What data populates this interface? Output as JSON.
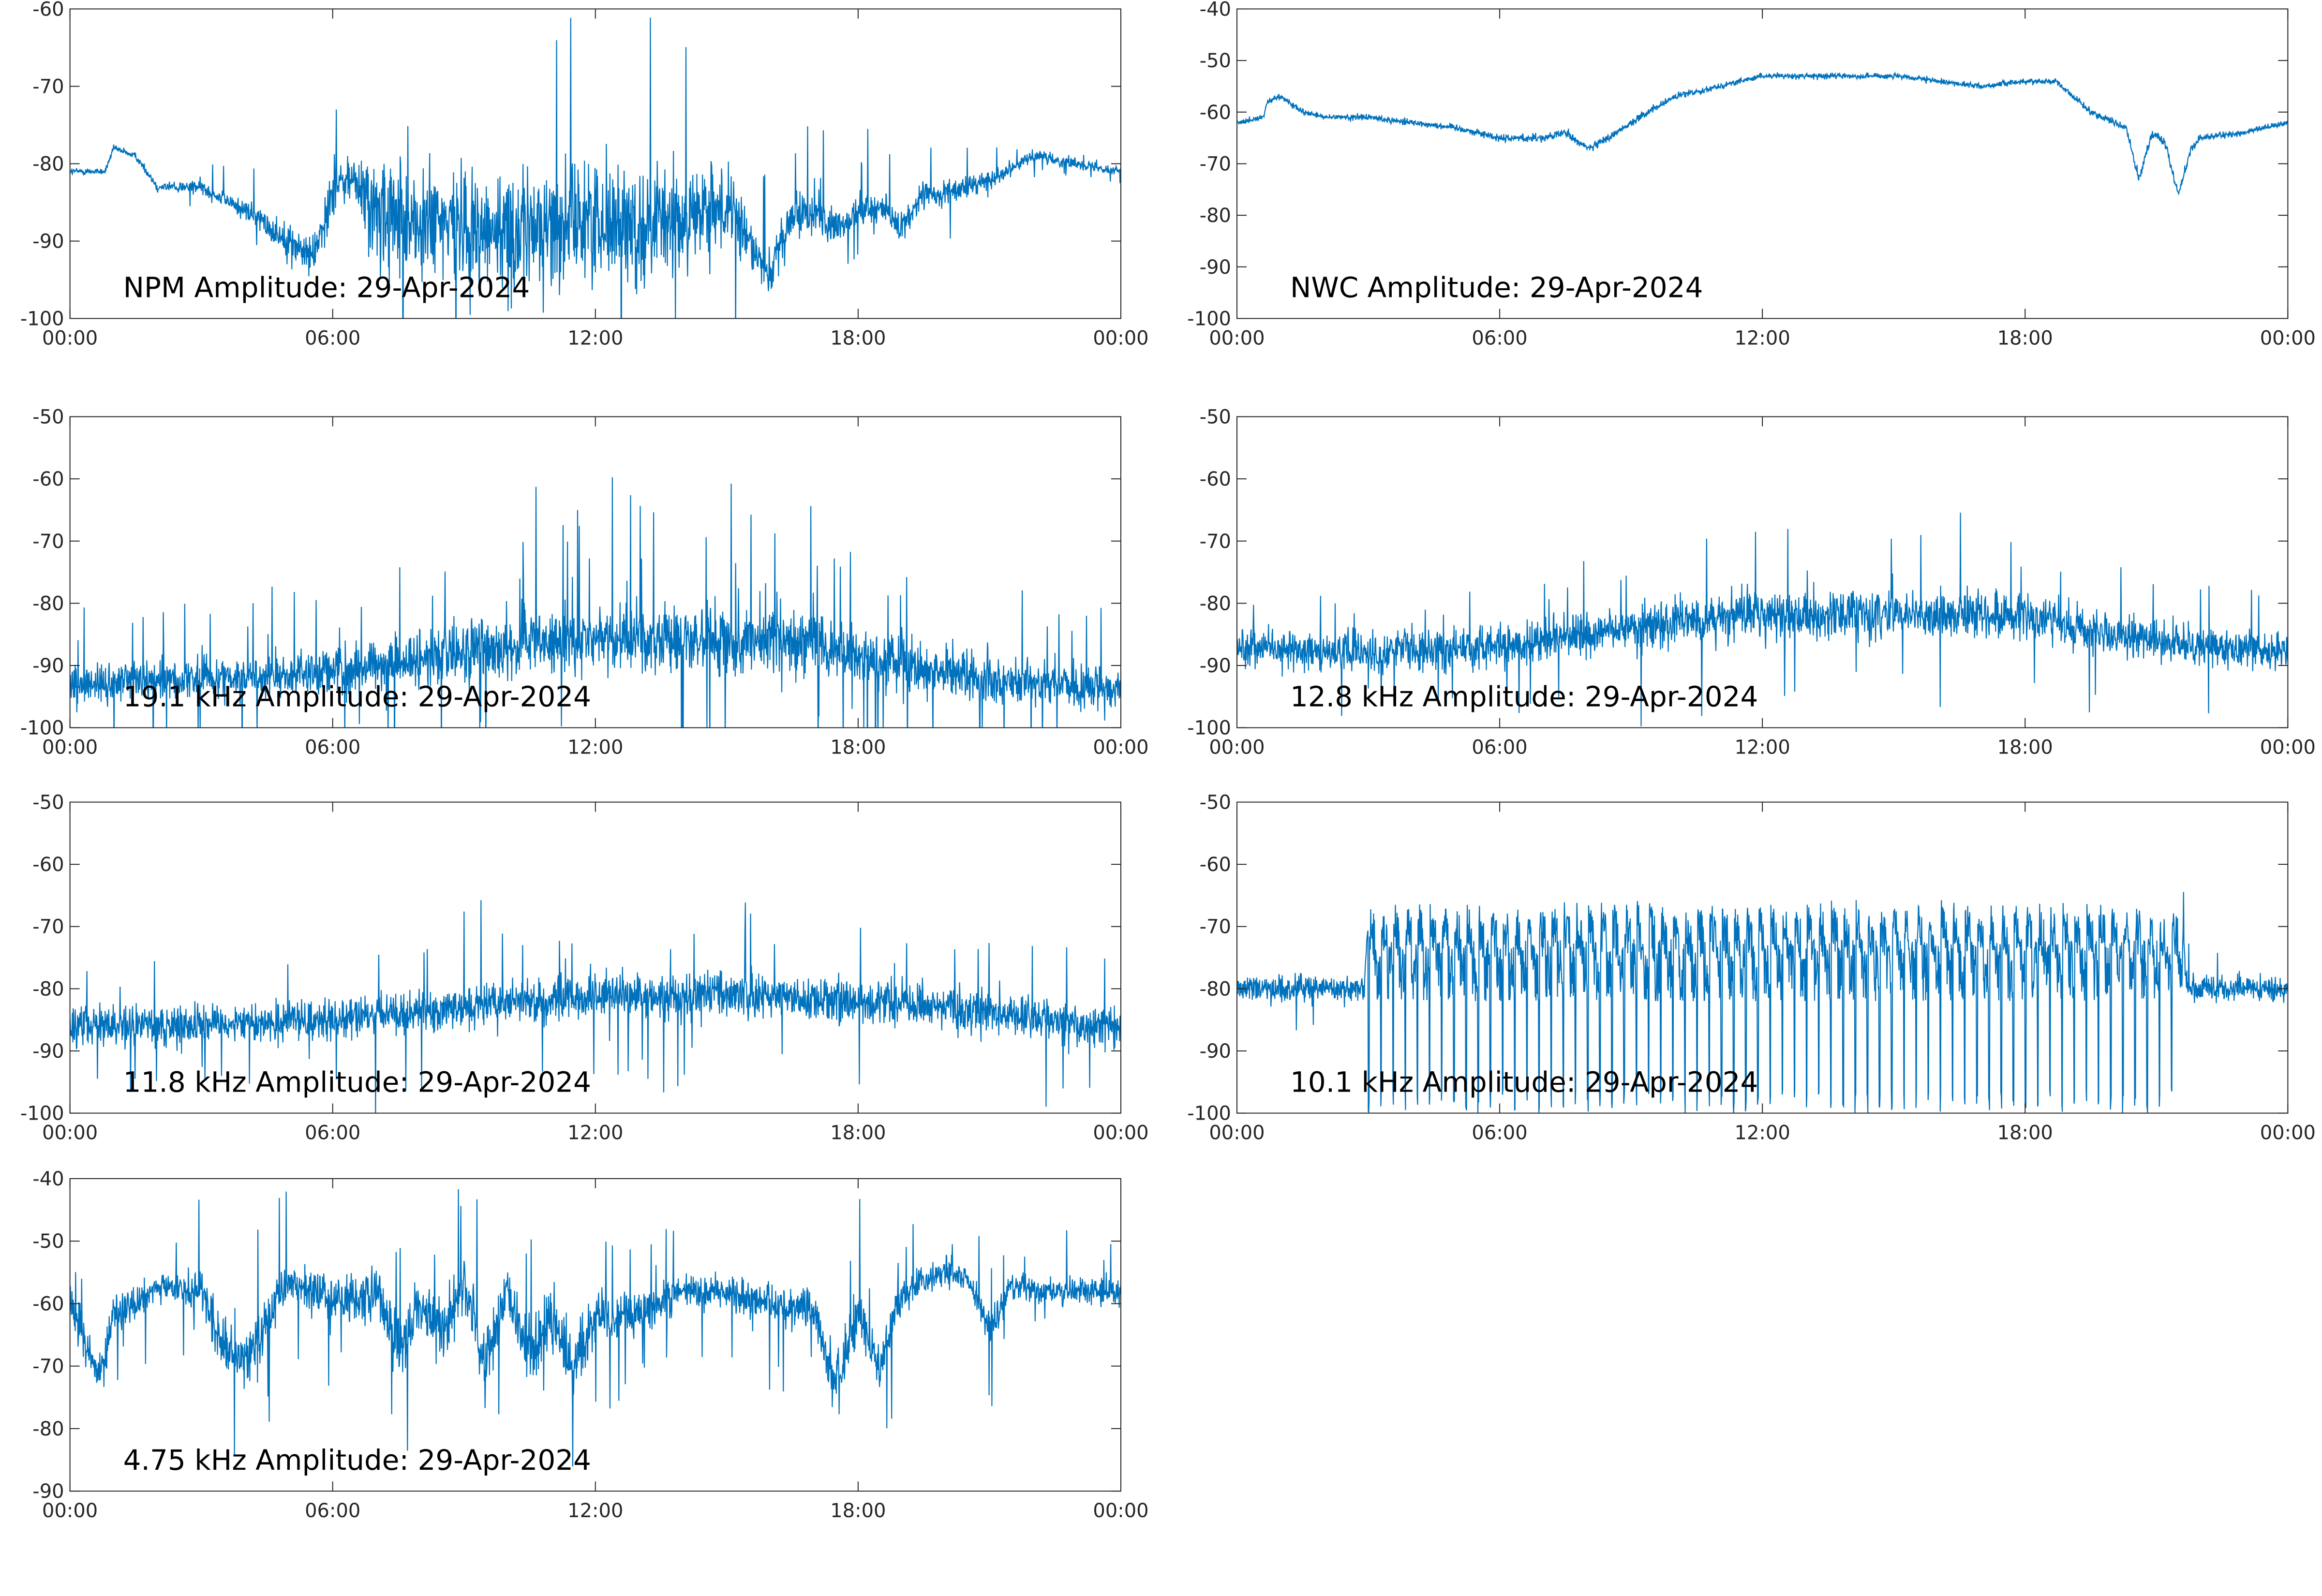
{
  "chart_data": [
    {
      "type": "line",
      "title": "NPM Amplitude: 29-Apr-2024",
      "xlabel": "",
      "ylabel": "",
      "xlim": [
        "00:00",
        "24:00"
      ],
      "ylim": [
        -100,
        -60
      ],
      "xticks": [
        "00:00",
        "06:00",
        "12:00",
        "18:00",
        "00:00"
      ],
      "yticks": [
        "-60",
        "-70",
        "-80",
        "-90",
        "-100"
      ],
      "grid": false,
      "series": [
        {
          "color": "#0072BD",
          "x": [
            0,
            0.8,
            1,
            1.5,
            2,
            3,
            4,
            5,
            5.5,
            5.8,
            6,
            6.5,
            7,
            8,
            9,
            10,
            11,
            12,
            13,
            14,
            15,
            15.5,
            16,
            16.5,
            17,
            17.5,
            18,
            18.5,
            19,
            19.5,
            20,
            21,
            22,
            23,
            24
          ],
          "y": [
            -81,
            -81,
            -78,
            -79,
            -83,
            -83,
            -86,
            -90,
            -92,
            -88,
            -83,
            -82,
            -87,
            -88,
            -88,
            -89,
            -88,
            -87,
            -88,
            -87,
            -86,
            -90,
            -94,
            -87,
            -86,
            -89,
            -86,
            -86,
            -88,
            -84,
            -84,
            -82,
            -79,
            -80,
            -81
          ],
          "noise": [
            0.4,
            0.4,
            0.4,
            0.4,
            0.6,
            0.8,
            1.2,
            2,
            2.5,
            3,
            3,
            3,
            7,
            7,
            7,
            7,
            7,
            7,
            7,
            6,
            5,
            3,
            3,
            3,
            2.5,
            2.5,
            2,
            2,
            2,
            1.5,
            1.5,
            1,
            0.8,
            0.6,
            0.5
          ],
          "spikes": 0.02
        }
      ]
    },
    {
      "type": "line",
      "title": "NWC Amplitude: 29-Apr-2024",
      "xlabel": "",
      "ylabel": "",
      "xlim": [
        "00:00",
        "24:00"
      ],
      "ylim": [
        -100,
        -40
      ],
      "xticks": [
        "00:00",
        "06:00",
        "12:00",
        "18:00",
        "00:00"
      ],
      "yticks": [
        "-40",
        "-50",
        "-60",
        "-70",
        "-80",
        "-90",
        "-100"
      ],
      "grid": false,
      "series": [
        {
          "color": "#0072BD",
          "x": [
            0,
            0.6,
            0.7,
            1.0,
            1.5,
            2,
            3,
            4,
            5,
            6,
            7,
            7.5,
            8,
            8.3,
            9,
            10,
            11,
            12,
            13,
            14,
            15,
            16,
            17,
            18,
            18.7,
            19.5,
            20.3,
            20.6,
            20.9,
            21.2,
            21.5,
            21.8,
            22,
            23,
            24
          ],
          "y": [
            -62,
            -61,
            -58,
            -57,
            -60,
            -61,
            -61,
            -62,
            -63,
            -65,
            -65,
            -64,
            -67,
            -66,
            -62,
            -57,
            -55,
            -53,
            -53,
            -53,
            -53,
            -54,
            -55,
            -54,
            -54,
            -60,
            -63,
            -73,
            -64,
            -66,
            -76,
            -67,
            -65,
            -64,
            -62
          ],
          "noise": [
            0.5,
            0.5,
            0.5,
            0.5,
            0.5,
            0.5,
            0.6,
            0.6,
            0.6,
            0.7,
            0.7,
            0.7,
            0.8,
            0.8,
            0.7,
            0.6,
            0.5,
            0.5,
            0.5,
            0.5,
            0.5,
            0.5,
            0.5,
            0.5,
            0.5,
            0.6,
            0.8,
            1,
            0.8,
            0.8,
            1,
            0.8,
            0.6,
            0.5,
            0.5
          ],
          "spikes": 0
        }
      ]
    },
    {
      "type": "line",
      "title": "19.1 kHz Amplitude: 29-Apr-2024",
      "xlabel": "",
      "ylabel": "",
      "xlim": [
        "00:00",
        "24:00"
      ],
      "ylim": [
        -100,
        -50
      ],
      "xticks": [
        "00:00",
        "06:00",
        "12:00",
        "18:00",
        "00:00"
      ],
      "yticks": [
        "-50",
        "-60",
        "-70",
        "-80",
        "-90",
        "-100"
      ],
      "grid": false,
      "series": [
        {
          "color": "#0072BD",
          "x": [
            0,
            3,
            6,
            8,
            10,
            12,
            14,
            16,
            18,
            20,
            22,
            24
          ],
          "y": [
            -93,
            -92,
            -91,
            -89,
            -87,
            -86,
            -86,
            -86,
            -88,
            -91,
            -93,
            -94
          ],
          "noise": [
            3,
            3,
            3.5,
            4,
            5,
            5,
            5,
            5,
            4.5,
            4,
            3.5,
            3
          ],
          "spikes": 0.03
        }
      ]
    },
    {
      "type": "line",
      "title": "12.8 kHz Amplitude: 29-Apr-2024",
      "xlabel": "",
      "ylabel": "",
      "xlim": [
        "00:00",
        "24:00"
      ],
      "ylim": [
        -100,
        -50
      ],
      "xticks": [
        "00:00",
        "06:00",
        "12:00",
        "18:00",
        "00:00"
      ],
      "yticks": [
        "-50",
        "-60",
        "-70",
        "-80",
        "-90",
        "-100"
      ],
      "grid": false,
      "series": [
        {
          "color": "#0072BD",
          "x": [
            0,
            3,
            6,
            8,
            10,
            12,
            14,
            16,
            18,
            20,
            22,
            24
          ],
          "y": [
            -87,
            -88,
            -87,
            -85,
            -83,
            -82,
            -82,
            -82,
            -82,
            -85,
            -87,
            -88
          ],
          "noise": [
            2.8,
            2.8,
            3,
            3.2,
            3.5,
            3.5,
            3.5,
            3.5,
            3.5,
            3.2,
            3,
            2.8
          ],
          "spikes": 0.02
        }
      ]
    },
    {
      "type": "line",
      "title": "11.8 kHz Amplitude: 29-Apr-2024",
      "xlabel": "",
      "ylabel": "",
      "xlim": [
        "00:00",
        "24:00"
      ],
      "ylim": [
        -100,
        -50
      ],
      "xticks": [
        "00:00",
        "06:00",
        "12:00",
        "18:00",
        "00:00"
      ],
      "yticks": [
        "-50",
        "-60",
        "-70",
        "-80",
        "-90",
        "-100"
      ],
      "grid": false,
      "series": [
        {
          "color": "#0072BD",
          "x": [
            0,
            3,
            6,
            8,
            10,
            12,
            14,
            16,
            18,
            20,
            22,
            24
          ],
          "y": [
            -86,
            -86,
            -85,
            -84,
            -82,
            -81,
            -81,
            -81,
            -82,
            -83,
            -85,
            -86
          ],
          "noise": [
            2.8,
            2.8,
            3,
            3,
            3.2,
            3.3,
            3.3,
            3.3,
            3.2,
            3,
            3,
            2.8
          ],
          "spikes": 0.02
        }
      ]
    },
    {
      "type": "line",
      "title": "10.1 kHz Amplitude: 29-Apr-2024",
      "xlabel": "",
      "ylabel": "",
      "xlim": [
        "00:00",
        "24:00"
      ],
      "ylim": [
        -100,
        -50
      ],
      "xticks": [
        "00:00",
        "06:00",
        "12:00",
        "18:00",
        "00:00"
      ],
      "yticks": [
        "-50",
        "-60",
        "-70",
        "-80",
        "-90",
        "-100"
      ],
      "grid": false,
      "series": [
        {
          "color": "#0072BD",
          "x": [
            0,
            2.9,
            3,
            21.6,
            21.7,
            24
          ],
          "y": [
            -80,
            -80,
            -70,
            -70,
            -80,
            -80
          ],
          "noise": [
            2,
            2,
            3,
            3,
            2,
            2
          ],
          "spikes": 0.01,
          "pulse_window": [
            3,
            21.6
          ],
          "pulse_high": -63,
          "pulse_low": -100
        }
      ]
    },
    {
      "type": "line",
      "title": "4.75 kHz Amplitude: 29-Apr-2024",
      "xlabel": "",
      "ylabel": "",
      "xlim": [
        "00:00",
        "24:00"
      ],
      "ylim": [
        -90,
        -40
      ],
      "xticks": [
        "00:00",
        "06:00",
        "12:00",
        "18:00",
        "00:00"
      ],
      "yticks": [
        "-40",
        "-50",
        "-60",
        "-70",
        "-80",
        "-90"
      ],
      "grid": false,
      "series": [
        {
          "color": "#0072BD",
          "x": [
            0,
            0.7,
            1,
            2,
            3,
            3.5,
            4,
            4.5,
            5,
            6,
            7,
            7.5,
            8,
            8.5,
            9,
            9.5,
            10,
            10.5,
            11,
            11.5,
            12,
            13,
            14,
            15,
            16,
            17,
            17.5,
            18,
            18.5,
            19,
            20,
            20.5,
            21,
            21.5,
            22,
            23,
            24
          ],
          "y": [
            -60,
            -72,
            -62,
            -57,
            -58,
            -67,
            -70,
            -63,
            -56,
            -60,
            -58,
            -68,
            -60,
            -65,
            -57,
            -70,
            -58,
            -68,
            -62,
            -70,
            -62,
            -62,
            -58,
            -58,
            -60,
            -61,
            -73,
            -62,
            -70,
            -58,
            -55,
            -56,
            -64,
            -57,
            -58,
            -58,
            -58
          ],
          "noise": [
            3,
            3,
            3,
            2,
            3,
            4,
            4,
            4,
            3,
            4,
            4,
            5,
            4,
            5,
            4,
            5,
            4,
            5,
            4,
            5,
            4,
            3,
            2.5,
            2.5,
            3,
            3,
            4,
            4,
            4,
            3,
            2,
            2,
            3,
            2,
            2,
            2,
            2
          ],
          "spikes": 0.03
        }
      ]
    }
  ]
}
